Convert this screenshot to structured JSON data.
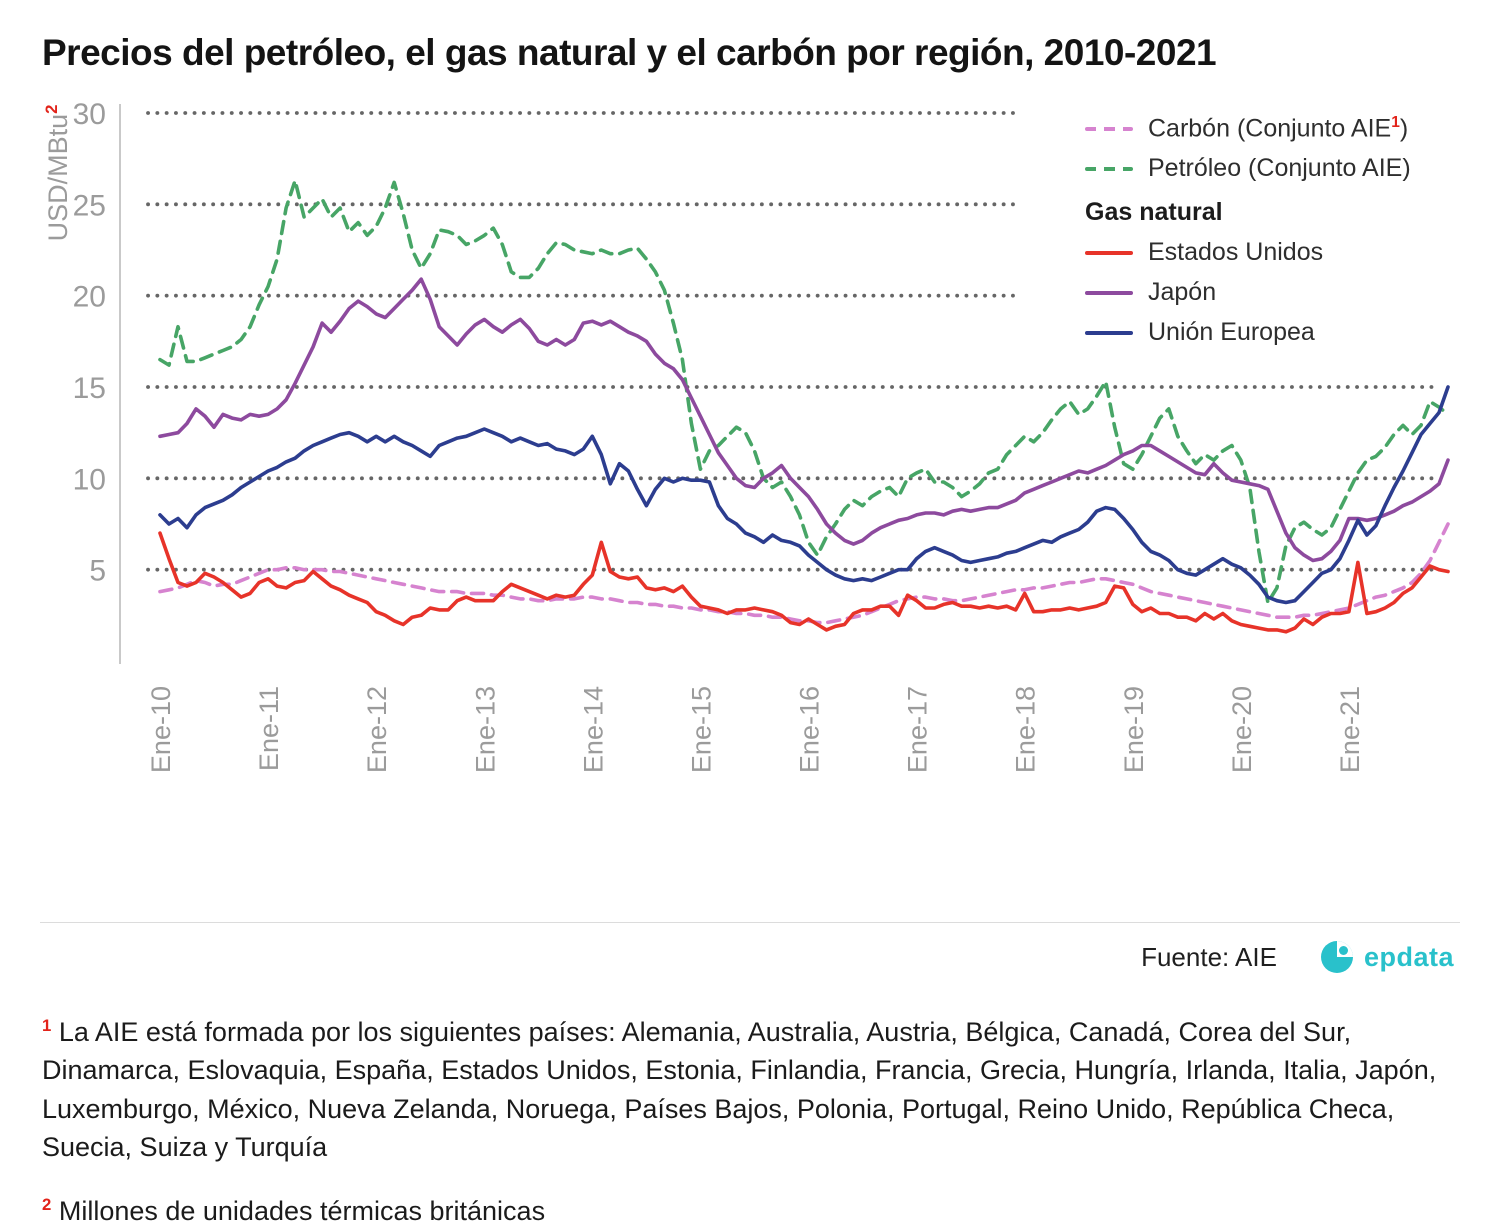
{
  "page": {
    "title": "Precios del petróleo, el gas natural y el carbón por región, 2010-2021"
  },
  "y_axis": {
    "label": "USD/MBtu",
    "superscript": "2"
  },
  "legend": {
    "gas_header": "Gas natural",
    "items": [
      {
        "pre": "Carbón (Conjunto AIE",
        "sup": "1",
        "post": ")"
      },
      {
        "pre": "Petróleo (Conjunto AIE)",
        "sup": "",
        "post": ""
      },
      {
        "pre": "Estados Unidos",
        "sup": "",
        "post": ""
      },
      {
        "pre": "Japón",
        "sup": "",
        "post": ""
      },
      {
        "pre": "Unión Europea",
        "sup": "",
        "post": ""
      }
    ]
  },
  "source": {
    "label": "Fuente: AIE",
    "brand": "epdata"
  },
  "footnotes": [
    {
      "marker": "1",
      "text": "La AIE está formada por los siguientes países: Alemania, Australia, Austria, Bélgica, Canadá, Corea del Sur, Dinamarca, Eslovaquia, España, Estados Unidos, Estonia, Finlandia, Francia, Grecia, Hungría, Irlanda, Italia, Japón, Luxemburgo, México, Nueva Zelanda, Noruega, Países Bajos, Polonia, Portugal, Reino Unido, República Checa, Suecia, Suiza y Turquía"
    },
    {
      "marker": "2",
      "text": "Millones de unidades térmicas británicas"
    }
  ],
  "colors": {
    "accent_red": "#e2231a",
    "grid_dots": "#666666",
    "axis_text": "#9b9b9b",
    "brand_cyan": "#29c1cb"
  },
  "chart_data": {
    "type": "line",
    "title": "Precios del petróleo, el gas natural y el carbón por región, 2010-2021",
    "ylabel": "USD/MBtu²",
    "xlabel": "",
    "ylim": [
      0,
      30
    ],
    "yticks": [
      5,
      10,
      15,
      20,
      25,
      30
    ],
    "grid": "dotted-horizontal",
    "legend_position": "top-right",
    "x_unit": "month",
    "x_range": [
      "Ene-2010",
      "Dic-2021"
    ],
    "x_tick_labels": [
      "Ene-10",
      "Ene-11",
      "Ene-12",
      "Ene-13",
      "Ene-14",
      "Ene-15",
      "Ene-16",
      "Ene-17",
      "Ene-18",
      "Ene-19",
      "Ene-20",
      "Ene-21"
    ],
    "series": [
      {
        "name": "Carbón (Conjunto AIE¹)",
        "color": "#d683cf",
        "dashed": true,
        "values": [
          3.8,
          3.9,
          4.0,
          4.2,
          4.4,
          4.3,
          4.1,
          4.2,
          4.2,
          4.4,
          4.6,
          4.8,
          5.0,
          5.0,
          5.1,
          5.1,
          5.0,
          5.0,
          5.0,
          4.9,
          4.9,
          4.8,
          4.7,
          4.6,
          4.5,
          4.4,
          4.3,
          4.2,
          4.1,
          4.0,
          3.9,
          3.8,
          3.8,
          3.8,
          3.7,
          3.7,
          3.7,
          3.6,
          3.6,
          3.5,
          3.4,
          3.4,
          3.3,
          3.3,
          3.4,
          3.4,
          3.4,
          3.5,
          3.5,
          3.4,
          3.4,
          3.3,
          3.2,
          3.2,
          3.1,
          3.1,
          3.0,
          3.0,
          2.9,
          2.9,
          2.8,
          2.8,
          2.7,
          2.7,
          2.6,
          2.6,
          2.5,
          2.5,
          2.4,
          2.4,
          2.3,
          2.2,
          2.2,
          2.1,
          2.1,
          2.2,
          2.3,
          2.4,
          2.5,
          2.7,
          2.9,
          3.1,
          3.3,
          3.4,
          3.5,
          3.5,
          3.4,
          3.4,
          3.3,
          3.3,
          3.4,
          3.5,
          3.6,
          3.7,
          3.8,
          3.9,
          3.9,
          4.0,
          4.0,
          4.1,
          4.2,
          4.3,
          4.3,
          4.4,
          4.5,
          4.5,
          4.4,
          4.3,
          4.2,
          4.0,
          3.8,
          3.7,
          3.6,
          3.5,
          3.4,
          3.3,
          3.2,
          3.1,
          3.0,
          2.9,
          2.8,
          2.7,
          2.6,
          2.5,
          2.4,
          2.4,
          2.4,
          2.5,
          2.5,
          2.6,
          2.7,
          2.8,
          2.9,
          3.1,
          3.3,
          3.5,
          3.6,
          3.8,
          4.0,
          4.3,
          4.8,
          5.5,
          6.5,
          7.5
        ]
      },
      {
        "name": "Petróleo (Conjunto AIE)",
        "color": "#47a566",
        "dashed": true,
        "values": [
          16.5,
          16.2,
          18.3,
          16.4,
          16.4,
          16.6,
          16.8,
          17.0,
          17.2,
          17.6,
          18.3,
          19.5,
          20.5,
          22.0,
          24.8,
          26.3,
          24.3,
          24.8,
          25.3,
          24.3,
          24.8,
          23.5,
          24.0,
          23.3,
          23.8,
          24.8,
          26.2,
          24.5,
          22.5,
          21.5,
          22.3,
          23.6,
          23.5,
          23.3,
          22.8,
          23.0,
          23.3,
          23.7,
          22.8,
          21.3,
          21.0,
          21.0,
          21.5,
          22.3,
          22.9,
          22.8,
          22.5,
          22.4,
          22.3,
          22.5,
          22.3,
          22.3,
          22.5,
          22.6,
          22.0,
          21.3,
          20.3,
          18.5,
          16.5,
          13.0,
          10.5,
          11.5,
          11.8,
          12.3,
          12.8,
          12.5,
          11.5,
          10.0,
          9.5,
          9.8,
          9.0,
          8.0,
          6.5,
          5.8,
          6.8,
          7.5,
          8.3,
          8.8,
          8.5,
          9.0,
          9.3,
          9.5,
          9.0,
          10.0,
          10.3,
          10.5,
          9.8,
          9.8,
          9.5,
          9.0,
          9.3,
          9.7,
          10.3,
          10.5,
          11.3,
          11.8,
          12.3,
          12.0,
          12.5,
          13.2,
          13.8,
          14.2,
          13.5,
          13.8,
          14.5,
          15.3,
          12.8,
          10.8,
          10.5,
          11.3,
          12.3,
          13.3,
          13.8,
          12.3,
          11.5,
          10.8,
          11.3,
          11.0,
          11.5,
          11.8,
          11.0,
          9.5,
          6.0,
          3.2,
          4.0,
          6.3,
          7.3,
          7.6,
          7.2,
          6.9,
          7.3,
          8.3,
          9.3,
          10.3,
          11.0,
          11.2,
          11.7,
          12.4,
          12.9,
          12.4,
          12.9,
          14.2,
          13.9,
          13.5
        ]
      },
      {
        "name": "Estados Unidos",
        "color": "#e73329",
        "dashed": false,
        "values": [
          7.0,
          5.6,
          4.3,
          4.1,
          4.3,
          4.8,
          4.6,
          4.3,
          3.9,
          3.5,
          3.7,
          4.3,
          4.5,
          4.1,
          4.0,
          4.3,
          4.4,
          4.9,
          4.5,
          4.1,
          3.9,
          3.6,
          3.4,
          3.2,
          2.7,
          2.5,
          2.2,
          2.0,
          2.4,
          2.5,
          2.9,
          2.8,
          2.8,
          3.3,
          3.5,
          3.3,
          3.3,
          3.3,
          3.8,
          4.2,
          4.0,
          3.8,
          3.6,
          3.4,
          3.6,
          3.5,
          3.6,
          4.2,
          4.7,
          6.5,
          4.9,
          4.6,
          4.5,
          4.6,
          4.0,
          3.9,
          4.0,
          3.8,
          4.1,
          3.5,
          3.0,
          2.9,
          2.8,
          2.6,
          2.8,
          2.8,
          2.9,
          2.8,
          2.7,
          2.5,
          2.1,
          2.0,
          2.3,
          2.0,
          1.7,
          1.9,
          2.0,
          2.6,
          2.8,
          2.8,
          3.0,
          3.0,
          2.5,
          3.6,
          3.3,
          2.9,
          2.9,
          3.1,
          3.2,
          3.0,
          3.0,
          2.9,
          3.0,
          2.9,
          3.0,
          2.8,
          3.7,
          2.7,
          2.7,
          2.8,
          2.8,
          2.9,
          2.8,
          2.9,
          3.0,
          3.2,
          4.1,
          4.0,
          3.1,
          2.7,
          2.9,
          2.6,
          2.6,
          2.4,
          2.4,
          2.2,
          2.6,
          2.3,
          2.6,
          2.2,
          2.0,
          1.9,
          1.8,
          1.7,
          1.7,
          1.6,
          1.8,
          2.3,
          2.0,
          2.4,
          2.6,
          2.6,
          2.7,
          5.4,
          2.6,
          2.7,
          2.9,
          3.2,
          3.7,
          4.0,
          4.6,
          5.2,
          5.0,
          4.9
        ]
      },
      {
        "name": "Japón",
        "color": "#8d4a9e",
        "dashed": false,
        "values": [
          12.3,
          12.4,
          12.5,
          13.0,
          13.8,
          13.4,
          12.8,
          13.5,
          13.3,
          13.2,
          13.5,
          13.4,
          13.5,
          13.8,
          14.3,
          15.2,
          16.2,
          17.2,
          18.5,
          18.0,
          18.6,
          19.3,
          19.7,
          19.4,
          19.0,
          18.8,
          19.3,
          19.8,
          20.3,
          20.9,
          19.8,
          18.3,
          17.8,
          17.3,
          17.9,
          18.4,
          18.7,
          18.3,
          18.0,
          18.4,
          18.7,
          18.2,
          17.5,
          17.3,
          17.6,
          17.3,
          17.6,
          18.5,
          18.6,
          18.4,
          18.6,
          18.3,
          18.0,
          17.8,
          17.5,
          16.8,
          16.3,
          16.0,
          15.4,
          14.4,
          13.4,
          12.4,
          11.4,
          10.7,
          10.0,
          9.6,
          9.5,
          10.0,
          10.3,
          10.7,
          10.0,
          9.5,
          9.0,
          8.3,
          7.5,
          7.0,
          6.6,
          6.4,
          6.6,
          7.0,
          7.3,
          7.5,
          7.7,
          7.8,
          8.0,
          8.1,
          8.1,
          8.0,
          8.2,
          8.3,
          8.2,
          8.3,
          8.4,
          8.4,
          8.6,
          8.8,
          9.2,
          9.4,
          9.6,
          9.8,
          10.0,
          10.2,
          10.4,
          10.3,
          10.5,
          10.7,
          11.0,
          11.3,
          11.5,
          11.8,
          11.8,
          11.5,
          11.2,
          10.9,
          10.6,
          10.3,
          10.2,
          10.8,
          10.3,
          9.9,
          9.8,
          9.7,
          9.6,
          9.4,
          8.2,
          7.0,
          6.2,
          5.8,
          5.5,
          5.6,
          6.0,
          6.6,
          7.8,
          7.8,
          7.7,
          7.8,
          8.0,
          8.2,
          8.5,
          8.7,
          9.0,
          9.3,
          9.7,
          11.0
        ]
      },
      {
        "name": "Unión Europea",
        "color": "#2c3d8f",
        "dashed": false,
        "values": [
          8.0,
          7.5,
          7.8,
          7.3,
          8.0,
          8.4,
          8.6,
          8.8,
          9.1,
          9.5,
          9.8,
          10.1,
          10.4,
          10.6,
          10.9,
          11.1,
          11.5,
          11.8,
          12.0,
          12.2,
          12.4,
          12.5,
          12.3,
          12.0,
          12.3,
          12.0,
          12.3,
          12.0,
          11.8,
          11.5,
          11.2,
          11.8,
          12.0,
          12.2,
          12.3,
          12.5,
          12.7,
          12.5,
          12.3,
          12.0,
          12.2,
          12.0,
          11.8,
          11.9,
          11.6,
          11.5,
          11.3,
          11.6,
          12.3,
          11.3,
          9.7,
          10.8,
          10.4,
          9.4,
          8.5,
          9.4,
          10.0,
          9.8,
          10.0,
          9.9,
          9.9,
          9.8,
          8.5,
          7.8,
          7.5,
          7.0,
          6.8,
          6.5,
          6.9,
          6.6,
          6.5,
          6.3,
          5.8,
          5.4,
          5.0,
          4.7,
          4.5,
          4.4,
          4.5,
          4.4,
          4.6,
          4.8,
          5.0,
          5.0,
          5.6,
          6.0,
          6.2,
          6.0,
          5.8,
          5.5,
          5.4,
          5.5,
          5.6,
          5.7,
          5.9,
          6.0,
          6.2,
          6.4,
          6.6,
          6.5,
          6.8,
          7.0,
          7.2,
          7.6,
          8.2,
          8.4,
          8.3,
          7.8,
          7.2,
          6.5,
          6.0,
          5.8,
          5.5,
          5.0,
          4.8,
          4.7,
          5.0,
          5.3,
          5.6,
          5.3,
          5.1,
          4.7,
          4.2,
          3.5,
          3.3,
          3.2,
          3.3,
          3.8,
          4.3,
          4.8,
          5.0,
          5.6,
          6.6,
          7.7,
          6.9,
          7.4,
          8.5,
          9.5,
          10.4,
          11.4,
          12.4,
          13.0,
          13.6,
          15.0
        ]
      }
    ]
  }
}
